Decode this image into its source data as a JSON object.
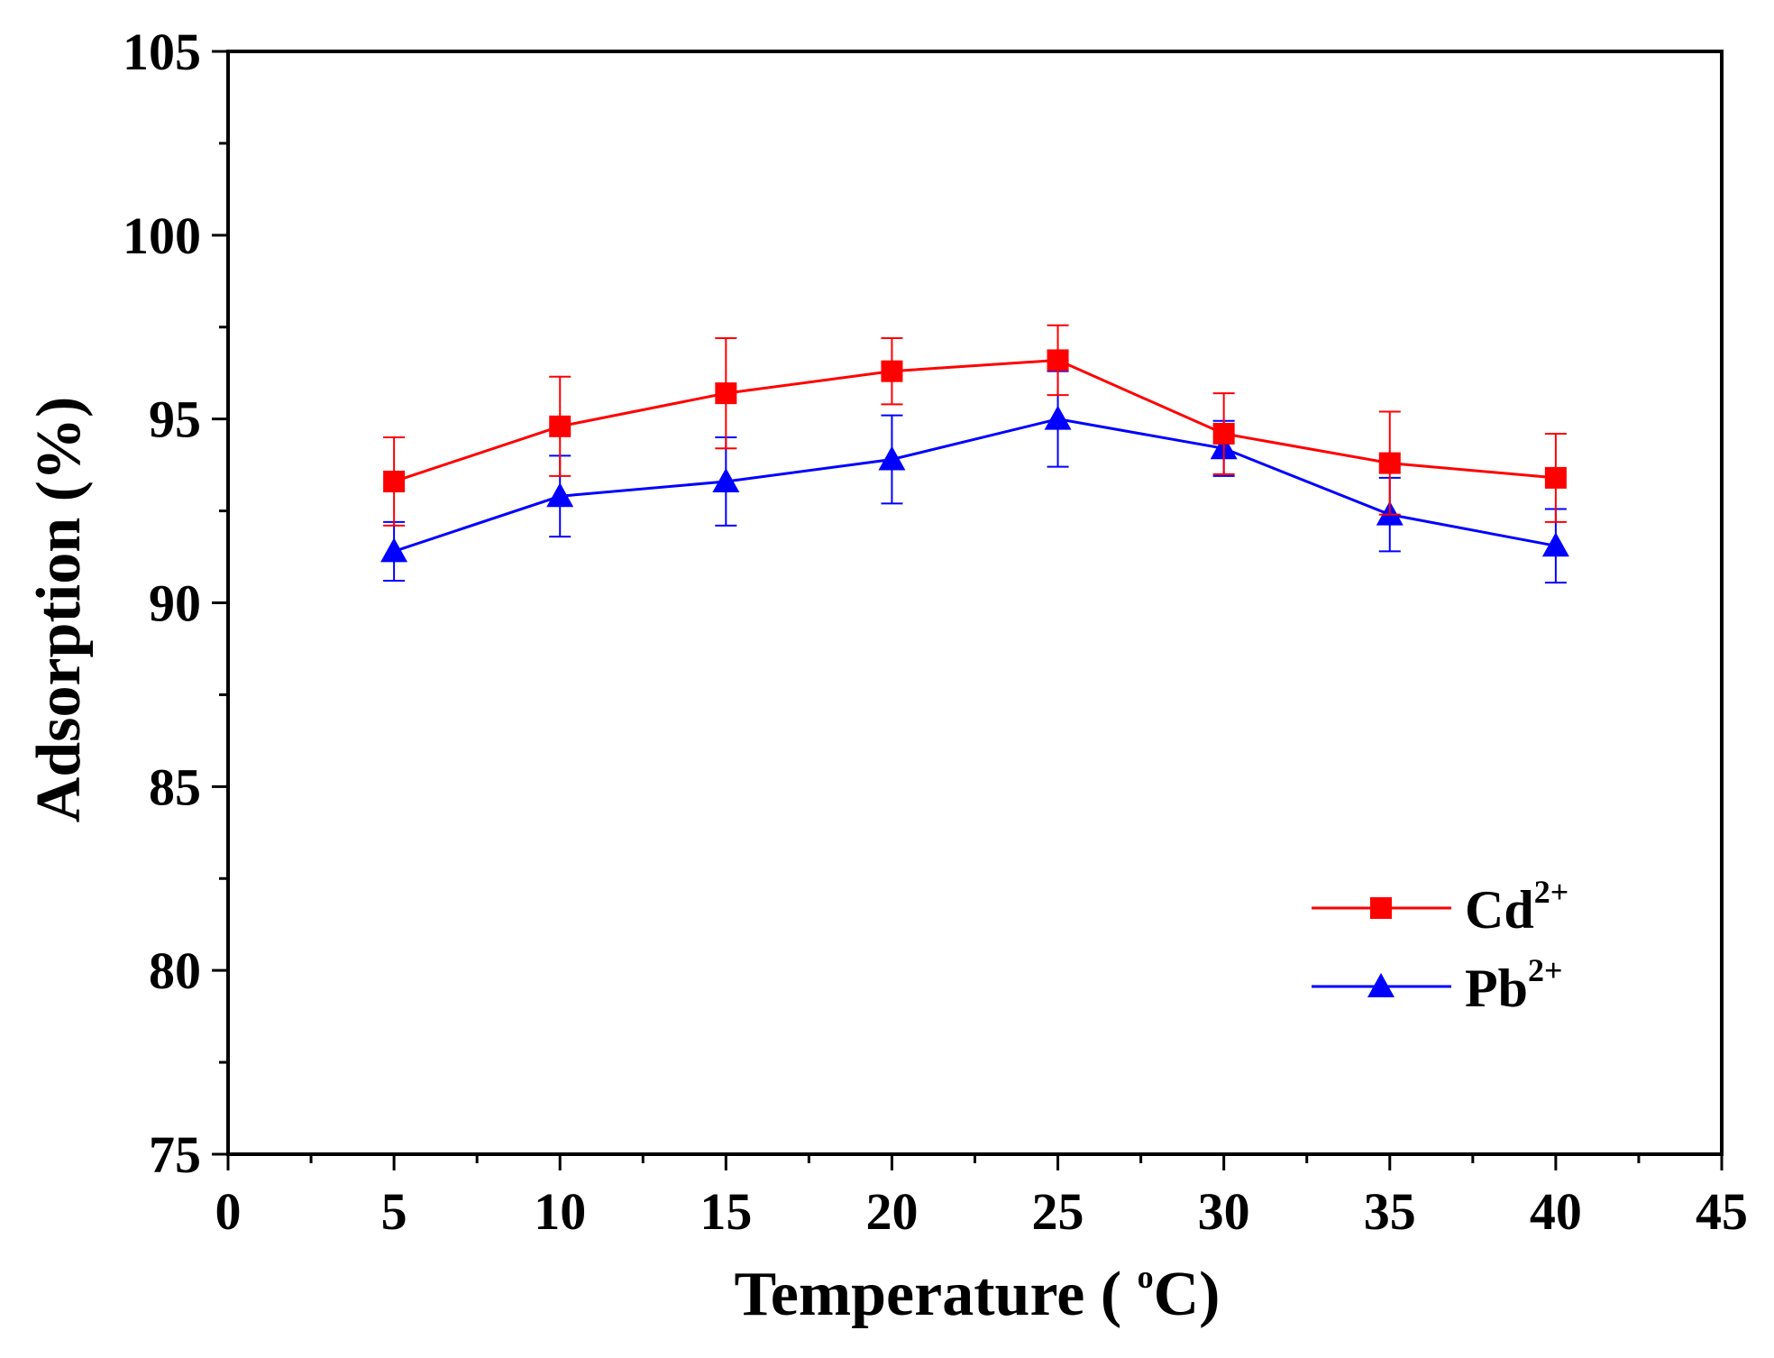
{
  "chart_data": {
    "type": "line",
    "xlabel": {
      "prefix": "Temperature ( ",
      "sup": "o",
      "suffix": "C)"
    },
    "ylabel": "Adsorption (%)",
    "xlim": [
      0,
      45
    ],
    "ylim": [
      75,
      105
    ],
    "xticks": [
      0,
      5,
      10,
      15,
      20,
      25,
      30,
      35,
      40,
      45
    ],
    "yticks": [
      75,
      80,
      85,
      90,
      95,
      100,
      105
    ],
    "grid": false,
    "legend_position": "bottom-right",
    "x": [
      5,
      10,
      15,
      20,
      25,
      30,
      35,
      40
    ],
    "series": [
      {
        "name": "Cd",
        "name_sup": "2+",
        "color": "#ff0000",
        "marker": "square",
        "values": [
          93.3,
          94.8,
          95.7,
          96.3,
          96.6,
          94.6,
          93.8,
          93.4
        ],
        "error": [
          1.2,
          1.35,
          1.5,
          0.9,
          0.95,
          1.1,
          1.4,
          1.2
        ]
      },
      {
        "name": "Pb",
        "name_sup": "2+",
        "color": "#0000ff",
        "marker": "triangle",
        "values": [
          91.4,
          92.9,
          93.3,
          93.9,
          95.0,
          94.2,
          92.4,
          91.55
        ],
        "error": [
          0.8,
          1.1,
          1.2,
          1.2,
          1.3,
          0.75,
          1.0,
          1.0
        ]
      }
    ]
  }
}
